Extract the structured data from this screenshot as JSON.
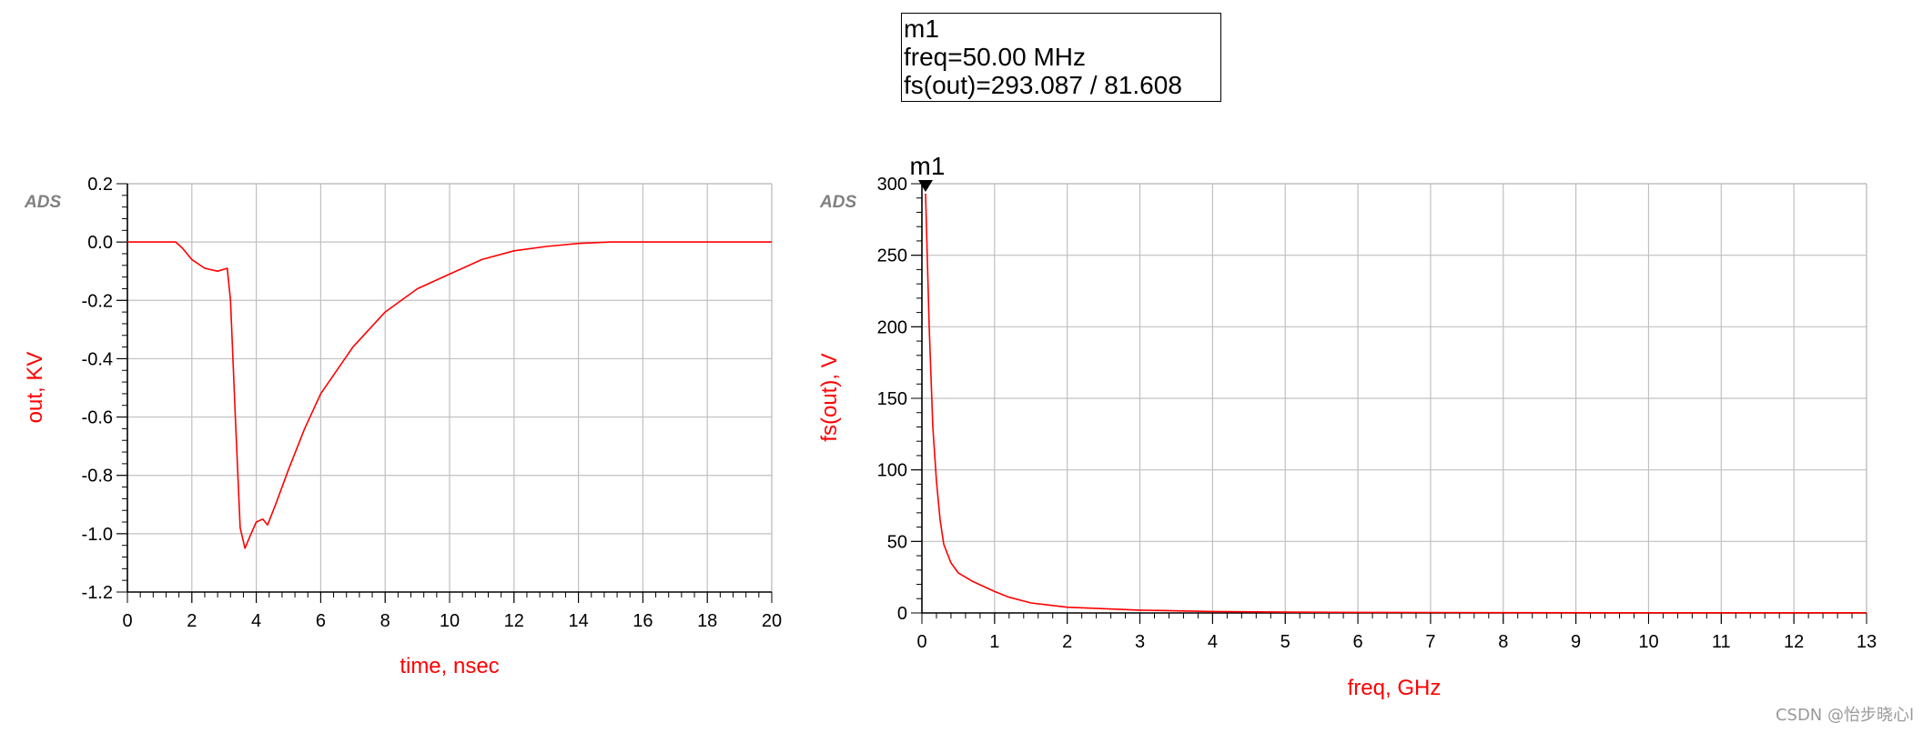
{
  "colors": {
    "trace": "#ff0000",
    "grid": "#c0c0c0",
    "axis": "#000000",
    "ads_logo": "#808080"
  },
  "marker": {
    "name": "m1",
    "freq_line": "freq=50.00 MHz",
    "value_line": "fs(out)=293.087 / 81.608"
  },
  "watermark": "CSDN @怡步晓心l",
  "chart_data": [
    {
      "type": "line",
      "logo": "ADS",
      "xlabel": "time, nsec",
      "ylabel": "out, KV",
      "xlim": [
        0,
        20
      ],
      "ylim": [
        -1.2,
        0.2
      ],
      "x_ticks": [
        0,
        2,
        4,
        6,
        8,
        10,
        12,
        14,
        16,
        18,
        20
      ],
      "x_tick_labels": [
        "0",
        "2",
        "4",
        "6",
        "8",
        "10",
        "12",
        "14",
        "16",
        "18",
        "20"
      ],
      "y_ticks": [
        0.2,
        0.0,
        -0.2,
        -0.4,
        -0.6,
        -0.8,
        -1.0,
        -1.2
      ],
      "y_tick_labels": [
        "0.2",
        "0.0",
        "-0.2",
        "-0.4",
        "-0.6",
        "-0.8",
        "-1.0",
        "-1.2"
      ],
      "grid": true,
      "series": [
        {
          "color": "#ff0000",
          "x": [
            0,
            1.5,
            1.7,
            2.0,
            2.4,
            2.8,
            3.1,
            3.2,
            3.35,
            3.5,
            3.65,
            3.8,
            4.0,
            4.2,
            4.35,
            4.6,
            5.0,
            5.5,
            6.0,
            7.0,
            8.0,
            9.0,
            10.0,
            11.0,
            12.0,
            13.0,
            14.0,
            15.0,
            16.0,
            18.0,
            20.0
          ],
          "y": [
            0,
            0,
            -0.02,
            -0.06,
            -0.09,
            -0.1,
            -0.09,
            -0.2,
            -0.6,
            -0.98,
            -1.05,
            -1.01,
            -0.96,
            -0.95,
            -0.97,
            -0.9,
            -0.78,
            -0.64,
            -0.52,
            -0.36,
            -0.24,
            -0.16,
            -0.11,
            -0.06,
            -0.03,
            -0.015,
            -0.005,
            0,
            0,
            0,
            0
          ]
        }
      ]
    },
    {
      "type": "line",
      "logo": "ADS",
      "xlabel": "freq, GHz",
      "ylabel": "fs(out), V",
      "xlim": [
        0,
        13
      ],
      "ylim": [
        0,
        300
      ],
      "x_ticks": [
        0,
        1,
        2,
        3,
        4,
        5,
        6,
        7,
        8,
        9,
        10,
        11,
        12,
        13
      ],
      "x_tick_labels": [
        "0",
        "1",
        "2",
        "3",
        "4",
        "5",
        "6",
        "7",
        "8",
        "9",
        "10",
        "11",
        "12",
        "13"
      ],
      "y_ticks": [
        0,
        50,
        100,
        150,
        200,
        250,
        300
      ],
      "y_tick_labels": [
        "0",
        "50",
        "100",
        "150",
        "200",
        "250",
        "300"
      ],
      "grid": true,
      "marker": {
        "name": "m1",
        "x": 0.05,
        "y": 293.087
      },
      "series": [
        {
          "color": "#ff0000",
          "x": [
            0.05,
            0.1,
            0.15,
            0.2,
            0.25,
            0.3,
            0.4,
            0.5,
            0.7,
            1.0,
            1.2,
            1.5,
            2.0,
            2.5,
            3.0,
            4.0,
            5.0,
            6.0,
            7.0,
            8.0,
            10.0,
            13.0
          ],
          "y": [
            293.087,
            200,
            130,
            92,
            65,
            48,
            35,
            28,
            22,
            15,
            11,
            7,
            4,
            3,
            2,
            1,
            0.6,
            0.4,
            0.3,
            0.2,
            0.1,
            0.1
          ]
        }
      ]
    }
  ]
}
